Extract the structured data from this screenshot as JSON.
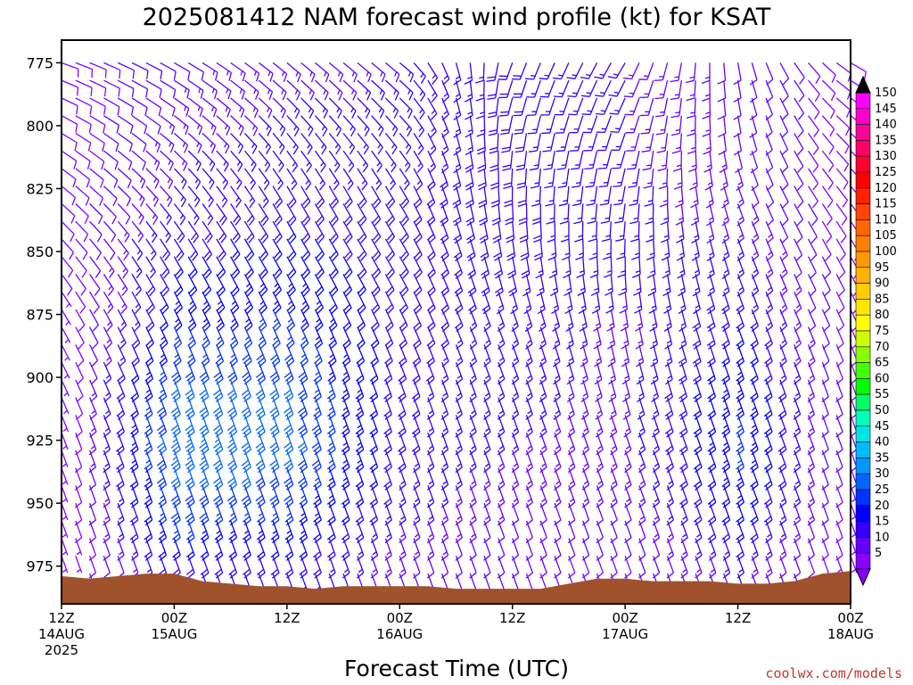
{
  "chart_data": {
    "type": "wind-barb-profile",
    "title": "2025081412 NAM forecast wind profile (kt) for KSAT",
    "xlabel": "Forecast Time (UTC)",
    "credit": "coolwx.com/models",
    "y_ticks": [
      775,
      800,
      825,
      850,
      875,
      900,
      925,
      950,
      975
    ],
    "ylim": [
      990,
      766
    ],
    "x_ticks": [
      {
        "hour": 0,
        "line1": "12Z",
        "line2": "14AUG",
        "line3": "2025"
      },
      {
        "hour": 12,
        "line1": "00Z",
        "line2": "15AUG",
        "line3": ""
      },
      {
        "hour": 24,
        "line1": "12Z",
        "line2": "",
        "line3": ""
      },
      {
        "hour": 36,
        "line1": "00Z",
        "line2": "16AUG",
        "line3": ""
      },
      {
        "hour": 48,
        "line1": "12Z",
        "line2": "",
        "line3": ""
      },
      {
        "hour": 60,
        "line1": "00Z",
        "line2": "17AUG",
        "line3": ""
      },
      {
        "hour": 72,
        "line1": "12Z",
        "line2": "",
        "line3": ""
      },
      {
        "hour": 84,
        "line1": "00Z",
        "line2": "18AUG",
        "line3": ""
      }
    ],
    "xlim": [
      0,
      84
    ],
    "colorbar": {
      "labels": [
        150,
        145,
        140,
        135,
        130,
        125,
        120,
        115,
        110,
        105,
        100,
        95,
        90,
        85,
        80,
        75,
        70,
        65,
        60,
        55,
        50,
        45,
        40,
        35,
        30,
        25,
        20,
        15,
        10,
        5
      ],
      "colors": [
        "#ff00ff",
        "#ff00cc",
        "#ff0099",
        "#ff0066",
        "#ff0033",
        "#ff0000",
        "#ff2200",
        "#ff4400",
        "#ff6600",
        "#ff7f00",
        "#ff9900",
        "#ffb300",
        "#ffcc00",
        "#ffe600",
        "#ffff00",
        "#ccff00",
        "#88ff00",
        "#44ff00",
        "#00ff00",
        "#00ff66",
        "#00ffbb",
        "#00e6e6",
        "#00bbff",
        "#0099ff",
        "#0066ff",
        "#0033ff",
        "#0000ff",
        "#3300ff",
        "#6600ff",
        "#8800ff"
      ],
      "top_color": "#000000",
      "bottom_color": "#8800ff"
    },
    "terrain_color": "#a0522d",
    "surface_pressure": [
      [
        0,
        979
      ],
      [
        3,
        980
      ],
      [
        6,
        979
      ],
      [
        9,
        978
      ],
      [
        12,
        978
      ],
      [
        15,
        981
      ],
      [
        18,
        982
      ],
      [
        21,
        983
      ],
      [
        24,
        983
      ],
      [
        27,
        984
      ],
      [
        30,
        983
      ],
      [
        33,
        983
      ],
      [
        36,
        983
      ],
      [
        39,
        983
      ],
      [
        42,
        984
      ],
      [
        45,
        984
      ],
      [
        48,
        984
      ],
      [
        51,
        984
      ],
      [
        54,
        982
      ],
      [
        57,
        980
      ],
      [
        60,
        980
      ],
      [
        63,
        981
      ],
      [
        66,
        981
      ],
      [
        69,
        981
      ],
      [
        72,
        982
      ],
      [
        75,
        982
      ],
      [
        78,
        981
      ],
      [
        81,
        978
      ],
      [
        84,
        977
      ]
    ],
    "wind_speed_kt": {
      "hours": [
        0,
        12,
        24,
        36,
        48,
        60,
        72,
        84
      ],
      "levels_hpa": [
        775,
        800,
        825,
        850,
        875,
        900,
        925,
        950,
        975
      ],
      "values": [
        [
          8,
          12,
          14,
          15,
          18,
          15,
          12,
          8
        ],
        [
          8,
          14,
          16,
          16,
          18,
          15,
          12,
          8
        ],
        [
          8,
          16,
          18,
          18,
          18,
          16,
          13,
          8
        ],
        [
          8,
          20,
          22,
          18,
          18,
          16,
          16,
          8
        ],
        [
          7,
          24,
          26,
          18,
          17,
          14,
          20,
          8
        ],
        [
          7,
          30,
          30,
          18,
          16,
          14,
          24,
          8
        ],
        [
          6,
          34,
          32,
          18,
          15,
          14,
          26,
          8
        ],
        [
          5,
          28,
          26,
          16,
          12,
          12,
          22,
          7
        ],
        [
          5,
          18,
          18,
          12,
          10,
          9,
          15,
          6
        ]
      ]
    },
    "wind_direction_deg": {
      "hours": [
        0,
        12,
        24,
        36,
        48,
        60,
        72,
        84
      ],
      "levels_hpa": [
        775,
        800,
        825,
        850,
        875,
        900,
        925,
        950,
        975
      ],
      "values": [
        [
          110,
          120,
          130,
          130,
          200,
          210,
          170,
          120
        ],
        [
          120,
          130,
          140,
          140,
          190,
          200,
          170,
          130
        ],
        [
          130,
          140,
          150,
          150,
          180,
          190,
          160,
          140
        ],
        [
          140,
          150,
          150,
          150,
          170,
          180,
          160,
          150
        ],
        [
          150,
          155,
          155,
          155,
          160,
          170,
          160,
          155
        ],
        [
          155,
          160,
          160,
          160,
          160,
          165,
          160,
          160
        ],
        [
          160,
          160,
          160,
          160,
          160,
          160,
          160,
          160
        ],
        [
          160,
          160,
          160,
          160,
          160,
          160,
          160,
          160
        ],
        [
          160,
          160,
          160,
          160,
          160,
          160,
          160,
          160
        ]
      ]
    }
  }
}
